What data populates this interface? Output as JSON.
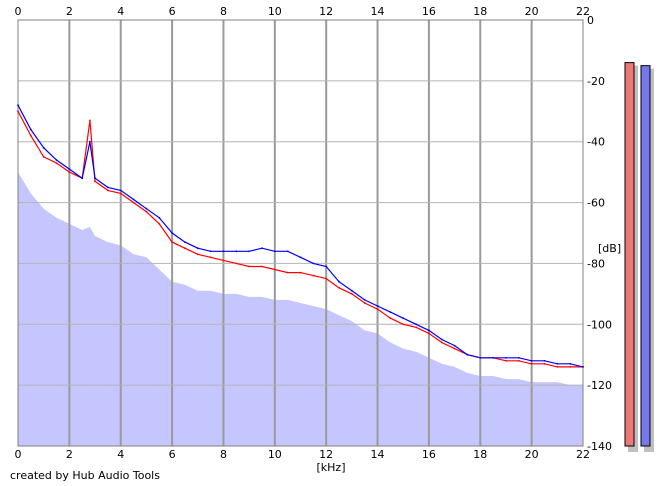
{
  "chart_data": {
    "type": "line",
    "title": "",
    "xlabel": "[kHz]",
    "ylabel": "[dB]",
    "xlim": [
      0,
      22
    ],
    "ylim": [
      -140,
      0
    ],
    "x_ticks": [
      "0",
      "2",
      "4",
      "6",
      "8",
      "10",
      "12",
      "14",
      "16",
      "18",
      "20",
      "22"
    ],
    "y_ticks": [
      "0",
      "-20",
      "-40",
      "-60",
      "-80",
      "-100",
      "-120",
      "-140"
    ],
    "grid": true,
    "x": [
      0,
      0.5,
      1,
      1.5,
      2,
      2.5,
      2.8,
      3,
      3.5,
      4,
      4.5,
      5,
      5.5,
      6,
      6.5,
      7,
      7.5,
      8,
      8.5,
      9,
      9.5,
      10,
      10.5,
      11,
      11.5,
      12,
      12.5,
      13,
      13.5,
      14,
      14.5,
      15,
      15.5,
      16,
      16.5,
      17,
      17.5,
      18,
      18.5,
      19,
      19.5,
      20,
      20.5,
      21,
      21.5,
      22
    ],
    "series": [
      {
        "color": "#ff0000",
        "values": [
          -30,
          -38,
          -45,
          -47,
          -50,
          -52,
          -33,
          -53,
          -56,
          -57,
          -60,
          -63,
          -67,
          -73,
          -75,
          -77,
          -78,
          -79,
          -80,
          -81,
          -81,
          -82,
          -83,
          -83,
          -84,
          -85,
          -88,
          -90,
          -93,
          -95,
          -98,
          -100,
          -101,
          -103,
          -106,
          -108,
          -110,
          -111,
          -111,
          -112,
          -112,
          -113,
          -113,
          -114,
          -114,
          -114
        ]
      },
      {
        "color": "#0000ff",
        "values": [
          -28,
          -36,
          -42,
          -46,
          -49,
          -52,
          -40,
          -52,
          -55,
          -56,
          -59,
          -62,
          -65,
          -70,
          -73,
          -75,
          -76,
          -76,
          -76,
          -76,
          -75,
          -76,
          -76,
          -78,
          -80,
          -81,
          -86,
          -89,
          -92,
          -94,
          -96,
          -98,
          -100,
          -102,
          -105,
          -107,
          -110,
          -111,
          -111,
          -111,
          -111,
          -112,
          -112,
          -113,
          -113,
          -114
        ]
      }
    ],
    "fill_series": {
      "color": "#c6c6ff",
      "values": [
        -50,
        -57,
        -62,
        -65,
        -67,
        -69,
        -68,
        -71,
        -73,
        -74,
        -77,
        -78,
        -82,
        -86,
        -87,
        -89,
        -89,
        -90,
        -90,
        -91,
        -91,
        -92,
        -92,
        -93,
        -94,
        -95,
        -97,
        -99,
        -102,
        -103,
        -106,
        -108,
        -109,
        -111,
        -113,
        -114,
        -116,
        -117,
        -117,
        -118,
        -118,
        -119,
        -119,
        -119,
        -120,
        -120
      ]
    },
    "level_meters": [
      {
        "color": "#ee7777",
        "level_db": -14
      },
      {
        "color": "#7777ee",
        "level_db": -15
      }
    ]
  },
  "footer": {
    "credit": "created by Hub Audio Tools"
  }
}
